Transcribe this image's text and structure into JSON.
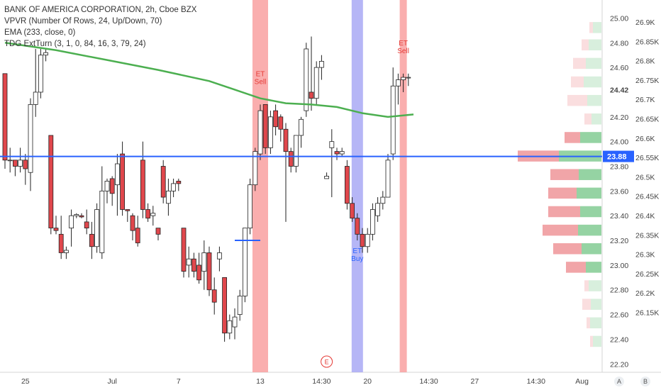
{
  "legend": {
    "title": "BANK OF AMERICA CORPORATION, 2h, Cboe BZX",
    "vpvr": "VPVR (Number Of Rows, 24, Up/Down, 70)",
    "ema": "EMA (233, close, 0)",
    "tdg": "TDG ExtTurn (3, 1, 0, 84, 16, 3, 79, 24)"
  },
  "price_badge": "23.88",
  "ema_badge": "24.42",
  "buttons": {
    "a": "A",
    "b": "B"
  },
  "event_badge": "E",
  "signals": [
    {
      "type": "sell",
      "text1": "ET",
      "text2": "Sell",
      "bar": 50
    },
    {
      "type": "buy",
      "text1": "ET",
      "text2": "Buy",
      "bar": 69
    },
    {
      "type": "sell",
      "text1": "ET",
      "text2": "Sell",
      "bar": 78
    }
  ],
  "colors": {
    "up": "#ffffff",
    "down": "#e0474c",
    "ema": "#4caf50",
    "priceline": "#2962ff",
    "sell_band": "#f9a0a0",
    "buy_band": "#a9a9f4",
    "vp_up": "#8fd19e",
    "vp_down": "#f0a0a3"
  },
  "chart_data": {
    "type": "candlestick",
    "symbol": "BANK OF AMERICA CORPORATION",
    "interval": "2h",
    "exchange": "Cboe BZX",
    "ylim": [
      22.15,
      25.1
    ],
    "y_ticks_left": [
      "25.00",
      "24.80",
      "24.60",
      "24.42",
      "24.20",
      "24.00",
      "23.88",
      "23.80",
      "23.60",
      "23.40",
      "23.20",
      "23.00",
      "22.80",
      "22.60",
      "22.40",
      "22.20"
    ],
    "y_ticks_right": [
      "26.9K",
      "26.85K",
      "26.8K",
      "26.75K",
      "26.7K",
      "26.65K",
      "26.6K",
      "26.55K",
      "26.5K",
      "26.45K",
      "26.4K",
      "26.35K",
      "26.3K",
      "26.25K",
      "26.2K",
      "26.15K"
    ],
    "x_ticks": [
      {
        "label": "25",
        "bar": 4
      },
      {
        "label": "Jul",
        "bar": 21
      },
      {
        "label": "7",
        "bar": 34
      },
      {
        "label": "13",
        "bar": 50
      },
      {
        "label": "14:30",
        "bar": 62
      },
      {
        "label": "20",
        "bar": 71
      },
      {
        "label": "14:30",
        "bar": 83
      },
      {
        "label": "27",
        "bar": 92
      },
      {
        "label": "14:30",
        "bar": 104
      },
      {
        "label": "Aug",
        "bar": 113
      }
    ],
    "candles": [
      [
        24.55,
        24.55,
        23.78,
        23.85
      ],
      [
        23.85,
        23.95,
        23.75,
        23.85
      ],
      [
        23.85,
        23.85,
        23.72,
        23.8
      ],
      [
        23.8,
        23.95,
        23.75,
        23.85
      ],
      [
        23.85,
        23.9,
        23.65,
        23.78
      ],
      [
        23.75,
        24.35,
        23.6,
        24.3
      ],
      [
        24.3,
        24.75,
        24.2,
        24.4
      ],
      [
        24.4,
        24.75,
        24.35,
        24.7
      ],
      [
        24.7,
        24.75,
        24.65,
        24.72
      ],
      [
        24.05,
        24.05,
        23.25,
        23.3
      ],
      [
        23.3,
        23.4,
        23.25,
        23.28
      ],
      [
        23.25,
        23.4,
        23.05,
        23.1
      ],
      [
        23.1,
        23.15,
        23.05,
        23.12
      ],
      [
        23.3,
        23.45,
        23.15,
        23.4
      ],
      [
        23.4,
        23.42,
        23.38,
        23.41
      ],
      [
        23.4,
        23.42,
        23.38,
        23.39
      ],
      [
        23.35,
        23.45,
        23.25,
        23.3
      ],
      [
        23.25,
        23.35,
        23.05,
        23.15
      ],
      [
        23.15,
        23.5,
        23.1,
        23.45
      ],
      [
        23.1,
        23.8,
        23.05,
        23.6
      ],
      [
        23.6,
        23.7,
        23.5,
        23.68
      ],
      [
        23.7,
        23.72,
        23.48,
        23.58
      ],
      [
        23.65,
        23.9,
        23.4,
        23.82
      ],
      [
        23.9,
        24.0,
        23.4,
        23.45
      ],
      [
        23.45,
        23.45,
        23.35,
        23.44
      ],
      [
        23.4,
        23.42,
        23.2,
        23.28
      ],
      [
        23.3,
        23.4,
        23.15,
        23.18
      ],
      [
        23.85,
        24.0,
        23.38,
        23.45
      ],
      [
        23.45,
        23.5,
        23.35,
        23.38
      ],
      [
        23.4,
        23.48,
        23.32,
        23.42
      ],
      [
        23.3,
        23.3,
        23.2,
        23.25
      ],
      [
        23.8,
        23.85,
        23.5,
        23.55
      ],
      [
        23.5,
        23.7,
        23.4,
        23.6
      ],
      [
        23.6,
        23.7,
        23.55,
        23.66
      ],
      [
        23.68,
        23.7,
        23.6,
        23.66
      ],
      [
        23.3,
        23.3,
        22.9,
        22.95
      ],
      [
        23.0,
        23.15,
        22.9,
        23.05
      ],
      [
        23.05,
        23.1,
        22.9,
        22.95
      ],
      [
        23.0,
        23.1,
        22.85,
        22.88
      ],
      [
        22.95,
        23.2,
        22.8,
        23.1
      ],
      [
        23.1,
        23.15,
        22.75,
        22.8
      ],
      [
        22.8,
        22.9,
        22.6,
        22.7
      ],
      [
        23.05,
        23.15,
        22.95,
        23.1
      ],
      [
        22.9,
        22.9,
        22.38,
        22.45
      ],
      [
        22.45,
        22.6,
        22.4,
        22.55
      ],
      [
        22.5,
        22.65,
        22.4,
        22.58
      ],
      [
        22.6,
        22.8,
        22.55,
        22.75
      ],
      [
        22.75,
        23.3,
        22.7,
        23.3
      ],
      [
        23.3,
        23.7,
        23.25,
        23.65
      ],
      [
        23.65,
        23.95,
        23.6,
        23.92
      ],
      [
        23.9,
        24.3,
        23.85,
        24.25
      ],
      [
        24.3,
        24.3,
        23.9,
        23.95
      ],
      [
        23.95,
        24.25,
        23.9,
        24.2
      ],
      [
        24.25,
        24.3,
        24.05,
        24.12
      ],
      [
        24.2,
        24.22,
        24.0,
        24.1
      ],
      [
        24.1,
        24.15,
        23.35,
        23.92
      ],
      [
        23.92,
        23.95,
        23.75,
        23.8
      ],
      [
        23.8,
        24.05,
        23.75,
        24.05
      ],
      [
        24.05,
        24.2,
        23.95,
        24.18
      ],
      [
        24.25,
        24.8,
        24.2,
        24.75
      ],
      [
        24.4,
        24.85,
        24.25,
        24.35
      ],
      [
        24.35,
        24.65,
        24.3,
        24.6
      ],
      [
        24.6,
        24.7,
        24.5,
        24.65
      ],
      [
        23.7,
        23.75,
        23.7,
        23.72
      ],
      [
        23.95,
        24.1,
        23.55,
        24.0
      ],
      [
        23.92,
        23.95,
        23.85,
        23.9
      ],
      [
        23.9,
        23.95,
        23.88,
        23.92
      ],
      [
        23.8,
        23.85,
        23.45,
        23.5
      ],
      [
        23.5,
        23.55,
        23.35,
        23.38
      ],
      [
        23.38,
        23.42,
        23.2,
        23.25
      ],
      [
        23.25,
        23.3,
        23.1,
        23.15
      ],
      [
        23.15,
        23.3,
        23.1,
        23.25
      ],
      [
        23.25,
        23.5,
        23.2,
        23.45
      ],
      [
        23.4,
        23.55,
        23.35,
        23.5
      ],
      [
        23.5,
        23.6,
        23.45,
        23.55
      ],
      [
        23.55,
        23.9,
        23.55,
        23.85
      ],
      [
        23.9,
        24.6,
        23.85,
        24.45
      ],
      [
        24.45,
        24.55,
        24.3,
        24.5
      ],
      [
        24.5,
        24.55,
        24.4,
        24.52
      ],
      [
        24.52,
        24.55,
        24.45,
        24.52
      ]
    ],
    "ema_233": [
      [
        0,
        24.8
      ],
      [
        10,
        24.74
      ],
      [
        20,
        24.66
      ],
      [
        30,
        24.58
      ],
      [
        40,
        24.49
      ],
      [
        45,
        24.42
      ],
      [
        50,
        24.35
      ],
      [
        55,
        24.31
      ],
      [
        60,
        24.3
      ],
      [
        65,
        24.28
      ],
      [
        70,
        24.23
      ],
      [
        75,
        24.2
      ],
      [
        80,
        24.22
      ]
    ],
    "last_price": 23.88,
    "price_line": 23.88,
    "level_line": {
      "price": 23.2,
      "bar_from": 45,
      "bar_to": 50
    },
    "event_bar": 63,
    "volume_profile": [
      {
        "price": 24.92,
        "up": 12,
        "down": 5
      },
      {
        "price": 24.78,
        "up": 18,
        "down": 10
      },
      {
        "price": 24.63,
        "up": 22,
        "down": 18
      },
      {
        "price": 24.48,
        "up": 25,
        "down": 18
      },
      {
        "price": 24.33,
        "up": 20,
        "down": 28
      },
      {
        "price": 24.18,
        "up": 14,
        "down": 10
      },
      {
        "price": 24.03,
        "up": 30,
        "down": 22
      },
      {
        "price": 23.88,
        "up": 60,
        "down": 58
      },
      {
        "price": 23.73,
        "up": 32,
        "down": 40
      },
      {
        "price": 23.58,
        "up": 35,
        "down": 40
      },
      {
        "price": 23.43,
        "up": 30,
        "down": 45
      },
      {
        "price": 23.28,
        "up": 33,
        "down": 50
      },
      {
        "price": 23.13,
        "up": 28,
        "down": 40
      },
      {
        "price": 22.98,
        "up": 22,
        "down": 28
      },
      {
        "price": 22.83,
        "up": 18,
        "down": 6
      },
      {
        "price": 22.68,
        "up": 15,
        "down": 12
      },
      {
        "price": 22.53,
        "up": 16,
        "down": 5
      },
      {
        "price": 22.38,
        "up": 12,
        "down": 4
      }
    ]
  }
}
